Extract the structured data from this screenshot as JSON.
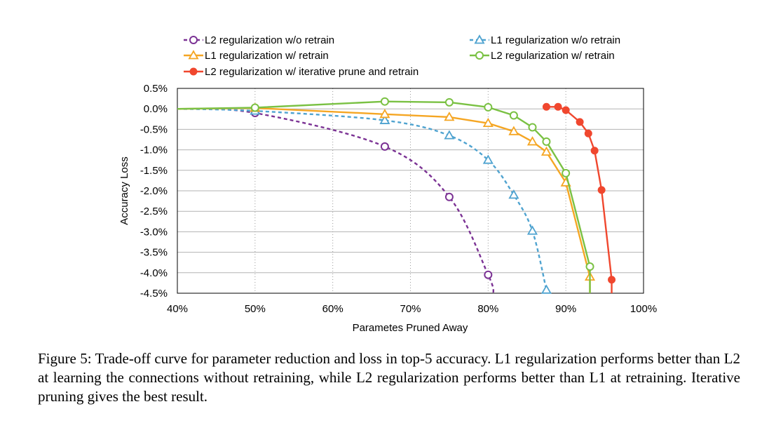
{
  "chart_data": {
    "type": "line",
    "title": "",
    "xlabel": "Parametes Pruned Away",
    "ylabel": "Accuracy Loss",
    "xlim": [
      40,
      100
    ],
    "ylim": [
      -4.5,
      0.5
    ],
    "x_ticks": [
      "40%",
      "50%",
      "60%",
      "70%",
      "80%",
      "90%",
      "100%"
    ],
    "y_ticks": [
      "0.5%",
      "0.0%",
      "-0.5%",
      "-1.0%",
      "-1.5%",
      "-2.0%",
      "-2.5%",
      "-3.0%",
      "-3.5%",
      "-4.0%",
      "-4.5%"
    ],
    "grid": "horizontal solid, vertical dotted",
    "legend_position": "top",
    "series": [
      {
        "name": "L2 regularization w/o retrain",
        "color": "#7b3294",
        "marker": "circle",
        "dash": true,
        "x": [
          40,
          50,
          66.7,
          75,
          80,
          80.7
        ],
        "y": [
          0.0,
          -0.1,
          -0.92,
          -2.15,
          -4.05,
          -4.5
        ]
      },
      {
        "name": "L1 regularization w/o retrain",
        "color": "#4fa3d0",
        "marker": "triangle",
        "dash": true,
        "x": [
          40,
          50,
          66.7,
          75,
          80,
          83.3,
          85.7,
          87.5
        ],
        "y": [
          0.0,
          -0.05,
          -0.28,
          -0.65,
          -1.25,
          -2.1,
          -2.98,
          -4.42
        ]
      },
      {
        "name": "L1 regularization w/ retrain",
        "color": "#f5a623",
        "marker": "triangle",
        "dash": false,
        "x": [
          40,
          50,
          66.7,
          75,
          80,
          83.3,
          85.7,
          87.5,
          90,
          93.1,
          93.1
        ],
        "y": [
          0.0,
          0.02,
          -0.13,
          -0.2,
          -0.35,
          -0.55,
          -0.8,
          -1.05,
          -1.8,
          -4.1,
          -4.5
        ]
      },
      {
        "name": "L2 regularization w/ retrain",
        "color": "#7ac143",
        "marker": "circle",
        "dash": false,
        "x": [
          40,
          50,
          66.7,
          75,
          80,
          83.3,
          85.7,
          87.5,
          90,
          93.1,
          93.1
        ],
        "y": [
          0.0,
          0.03,
          0.18,
          0.16,
          0.04,
          -0.16,
          -0.45,
          -0.8,
          -1.57,
          -3.85,
          -4.5
        ]
      },
      {
        "name": "L2 regularization w/ iterative prune and retrain",
        "color": "#f0472e",
        "marker": "filled-circle",
        "dash": false,
        "x": [
          87.5,
          89,
          90,
          91.8,
          92.9,
          93.7,
          94.6,
          95.9,
          95.9
        ],
        "y": [
          0.05,
          0.05,
          -0.03,
          -0.32,
          -0.6,
          -1.02,
          -1.98,
          -4.17,
          -4.5
        ]
      }
    ]
  },
  "caption": "Figure 5: Trade-off curve for parameter reduction and loss in top-5 accuracy. L1 regularization performs better than L2 at learning the connections without retraining, while L2 regularization performs better than L1 at retraining. Iterative pruning gives the best result."
}
